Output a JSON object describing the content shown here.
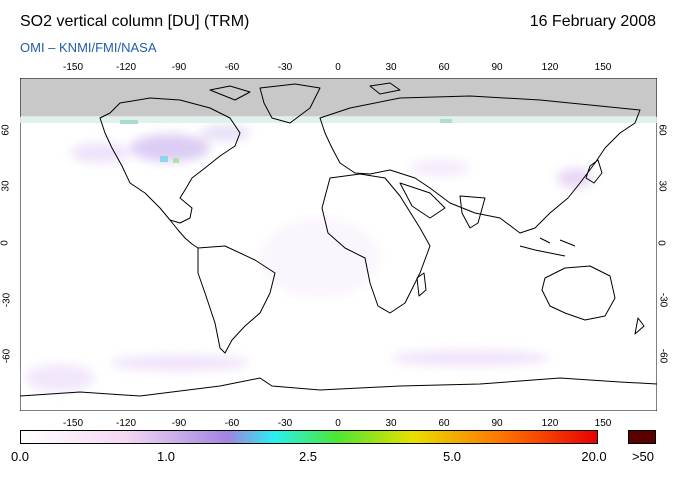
{
  "header": {
    "title": "SO2 vertical column [DU] (TRM)",
    "date": "16 February 2008",
    "credit": "OMI  –  KNMI/FMI/NASA"
  },
  "map": {
    "lon_range": [
      -180,
      180
    ],
    "lat_range": [
      -90,
      90
    ],
    "lon_ticks": [
      "-150",
      "-120",
      "-90",
      "-60",
      "-30",
      "0",
      "30",
      "60",
      "90",
      "120",
      "150"
    ],
    "lat_ticks_left": [
      "60",
      "30",
      "0",
      "-30",
      "-60"
    ],
    "lat_ticks_right": [
      "60",
      "30",
      "0",
      "-30",
      "-60"
    ],
    "no_data_color": "#c8c8c8",
    "coastline_color": "#000000",
    "background_color": "#ffffff"
  },
  "colorbar": {
    "labels": [
      "0.0",
      "1.0",
      "2.5",
      "5.0",
      "20.0"
    ],
    "over_label": ">50",
    "over_color": "#5a0000",
    "stops": [
      "#ffffff",
      "#f4d8f4",
      "#a084e0",
      "#28f0f0",
      "#4ee632",
      "#e8e000",
      "#ff7000",
      "#e80000"
    ]
  }
}
